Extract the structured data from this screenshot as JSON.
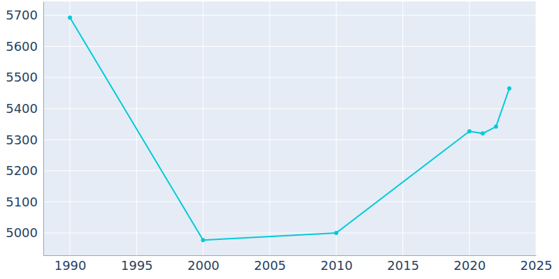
{
  "chart_data": {
    "type": "line",
    "x": [
      1990,
      2000,
      2010,
      2020,
      2021,
      2022,
      2023
    ],
    "values": [
      5693,
      4977,
      5000,
      5327,
      5320,
      5342,
      5465
    ],
    "color": "#00cbd6",
    "marker": "circle",
    "xlim": [
      1988,
      2025
    ],
    "xticks": [
      1990,
      1995,
      2000,
      2005,
      2010,
      2015,
      2020,
      2025
    ],
    "ylim": [
      4928,
      5745
    ],
    "yticks": [
      5000,
      5100,
      5200,
      5300,
      5400,
      5500,
      5600,
      5700
    ],
    "grid": true
  }
}
